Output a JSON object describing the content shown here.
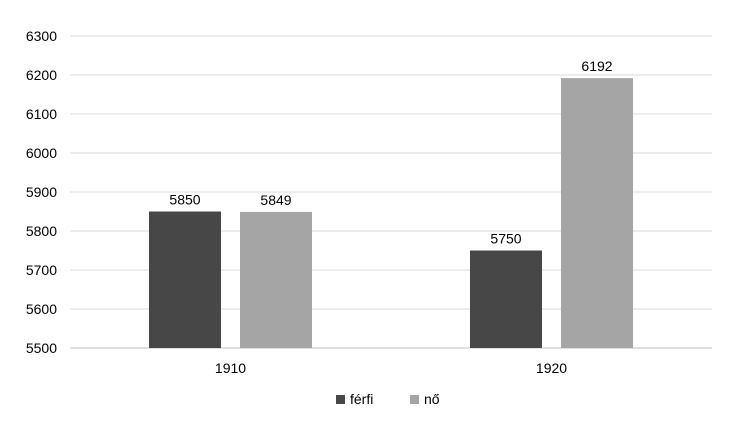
{
  "chart_data": {
    "type": "bar",
    "categories": [
      "1910",
      "1920"
    ],
    "series": [
      {
        "name": "férfi",
        "values": [
          5850,
          5750
        ],
        "color": "#474747"
      },
      {
        "name": "nő",
        "values": [
          5849,
          6192
        ],
        "color": "#a5a5a5"
      }
    ],
    "ylim": [
      5500,
      6300
    ],
    "yticks": [
      5500,
      5600,
      5700,
      5800,
      5900,
      6000,
      6100,
      6200,
      6300
    ],
    "ytick_labels": [
      "5500",
      "5600",
      "5700",
      "5800",
      "5900",
      "6000",
      "6100",
      "6200",
      "6300"
    ],
    "data_labels": [
      [
        "5850",
        "5750"
      ],
      [
        "5849",
        "6192"
      ]
    ],
    "grid": true,
    "legend": "bottom",
    "title": "",
    "xlabel": "",
    "ylabel": ""
  }
}
